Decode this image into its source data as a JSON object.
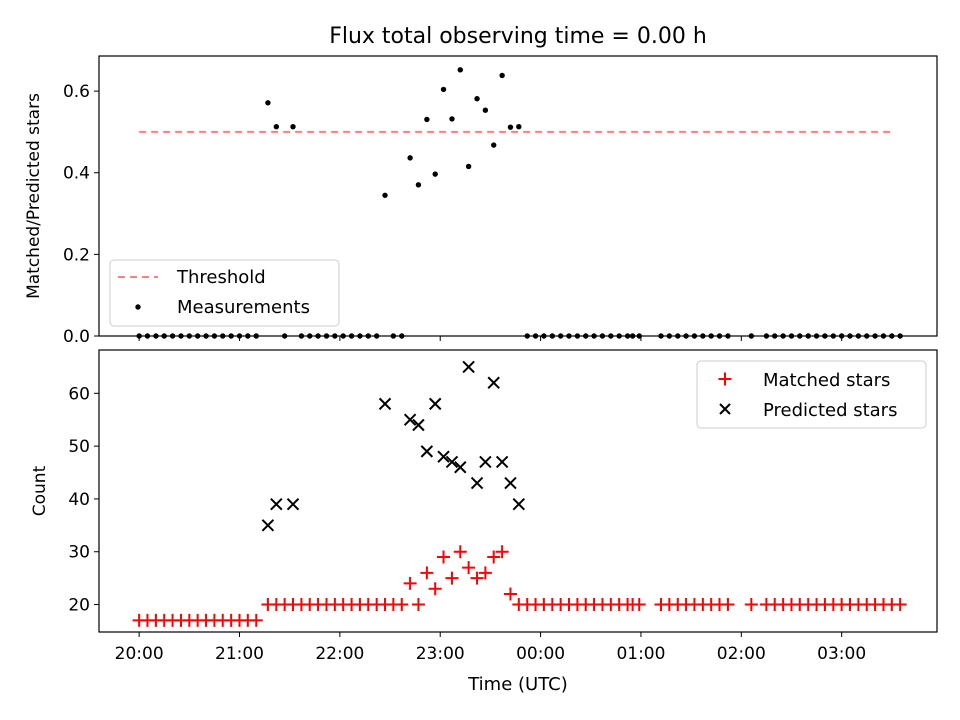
{
  "chart_data": {
    "title": "Flux total observing time = 0.00 h",
    "xlabel": "Time (UTC)",
    "x_unit": "hours after 20:00 UTC",
    "xlim": [
      -0.4,
      7.95
    ],
    "xticks": [
      {
        "value": 0,
        "label": "20:00"
      },
      {
        "value": 1,
        "label": "21:00"
      },
      {
        "value": 2,
        "label": "22:00"
      },
      {
        "value": 3,
        "label": "23:00"
      },
      {
        "value": 4,
        "label": "00:00"
      },
      {
        "value": 5,
        "label": "01:00"
      },
      {
        "value": 6,
        "label": "02:00"
      },
      {
        "value": 7,
        "label": "03:00"
      }
    ],
    "x": [
      0.0,
      0.083,
      0.167,
      0.25,
      0.333,
      0.417,
      0.5,
      0.583,
      0.667,
      0.75,
      0.833,
      0.917,
      1.0,
      1.083,
      1.167,
      1.283,
      1.367,
      1.45,
      1.533,
      1.617,
      1.7,
      1.783,
      1.867,
      1.95,
      2.033,
      2.117,
      2.2,
      2.283,
      2.367,
      2.45,
      2.533,
      2.617,
      2.7,
      2.783,
      2.867,
      2.95,
      3.033,
      3.117,
      3.2,
      3.283,
      3.367,
      3.45,
      3.533,
      3.617,
      3.7,
      3.783,
      3.867,
      3.95,
      4.033,
      4.117,
      4.2,
      4.283,
      4.367,
      4.45,
      4.533,
      4.617,
      4.7,
      4.783,
      4.867,
      4.917,
      4.983,
      5.2,
      5.283,
      5.367,
      5.45,
      5.533,
      5.617,
      5.7,
      5.783,
      5.867,
      6.1,
      6.25,
      6.333,
      6.417,
      6.5,
      6.583,
      6.667,
      6.75,
      6.833,
      6.917,
      7.0,
      7.083,
      7.167,
      7.25,
      7.333,
      7.417,
      7.5,
      7.583
    ],
    "panels": [
      {
        "ylabel": "Matched/Predicted stars",
        "ylim": [
          0,
          0.686
        ],
        "yticks": [
          0.0,
          0.2,
          0.4,
          0.6
        ],
        "ytick_labels": [
          "0.0",
          "0.2",
          "0.4",
          "0.6"
        ],
        "legend_position": "lower-left",
        "threshold": {
          "name": "Threshold",
          "value": 0.5,
          "x_range": [
            0,
            7.5
          ],
          "color": "#ff7f7f"
        },
        "series": [
          {
            "name": "Measurements",
            "marker": "dot",
            "color": "#000000",
            "values": [
              0,
              0,
              0,
              0,
              0,
              0,
              0,
              0,
              0,
              0,
              0,
              0,
              0,
              0,
              0,
              0.5714,
              0.5128,
              0,
              0.5128,
              0,
              0,
              0,
              0,
              0,
              0,
              0,
              0,
              0,
              0,
              0.3448,
              0,
              0,
              0.4364,
              0.3704,
              0.5306,
              0.3966,
              0.6042,
              0.5319,
              0.6522,
              0.4154,
              0.5814,
              0.5532,
              0.4677,
              0.6383,
              0.5116,
              0.5128,
              0,
              0,
              0,
              0,
              0,
              0,
              0,
              0,
              0,
              0,
              0,
              0,
              0,
              0,
              0,
              0,
              0,
              0,
              0,
              0,
              0,
              0,
              0,
              0,
              0,
              0,
              0,
              0,
              0,
              0,
              0,
              0,
              0,
              0,
              0,
              0,
              0,
              0,
              0,
              0,
              0,
              0
            ]
          }
        ]
      },
      {
        "ylabel": "Count",
        "ylim": [
          14.8,
          68.2
        ],
        "yticks": [
          20,
          30,
          40,
          50,
          60
        ],
        "ytick_labels": [
          "20",
          "30",
          "40",
          "50",
          "60"
        ],
        "legend_position": "upper-right",
        "series": [
          {
            "name": "Matched stars",
            "marker": "plus",
            "color": "#ff0000",
            "values": [
              17,
              17,
              17,
              17,
              17,
              17,
              17,
              17,
              17,
              17,
              17,
              17,
              17,
              17,
              17,
              20,
              20,
              20,
              20,
              20,
              20,
              20,
              20,
              20,
              20,
              20,
              20,
              20,
              20,
              20,
              20,
              20,
              24,
              20,
              26,
              23,
              29,
              25,
              30,
              27,
              25,
              26,
              29,
              30,
              22,
              20,
              20,
              20,
              20,
              20,
              20,
              20,
              20,
              20,
              20,
              20,
              20,
              20,
              20,
              20,
              20,
              20,
              20,
              20,
              20,
              20,
              20,
              20,
              20,
              20,
              20,
              20,
              20,
              20,
              20,
              20,
              20,
              20,
              20,
              20,
              20,
              20,
              20,
              20,
              20,
              20,
              20,
              20
            ]
          },
          {
            "name": "Predicted stars",
            "marker": "x",
            "color": "#000000",
            "x": [
              1.283,
              1.367,
              1.533,
              2.45,
              2.7,
              2.783,
              2.867,
              2.95,
              3.033,
              3.117,
              3.2,
              3.283,
              3.367,
              3.45,
              3.533,
              3.617,
              3.7,
              3.783
            ],
            "values": [
              35,
              39,
              39,
              58,
              55,
              54,
              49,
              58,
              48,
              47,
              46,
              65,
              43,
              47,
              62,
              47,
              43,
              39
            ]
          }
        ]
      }
    ]
  }
}
